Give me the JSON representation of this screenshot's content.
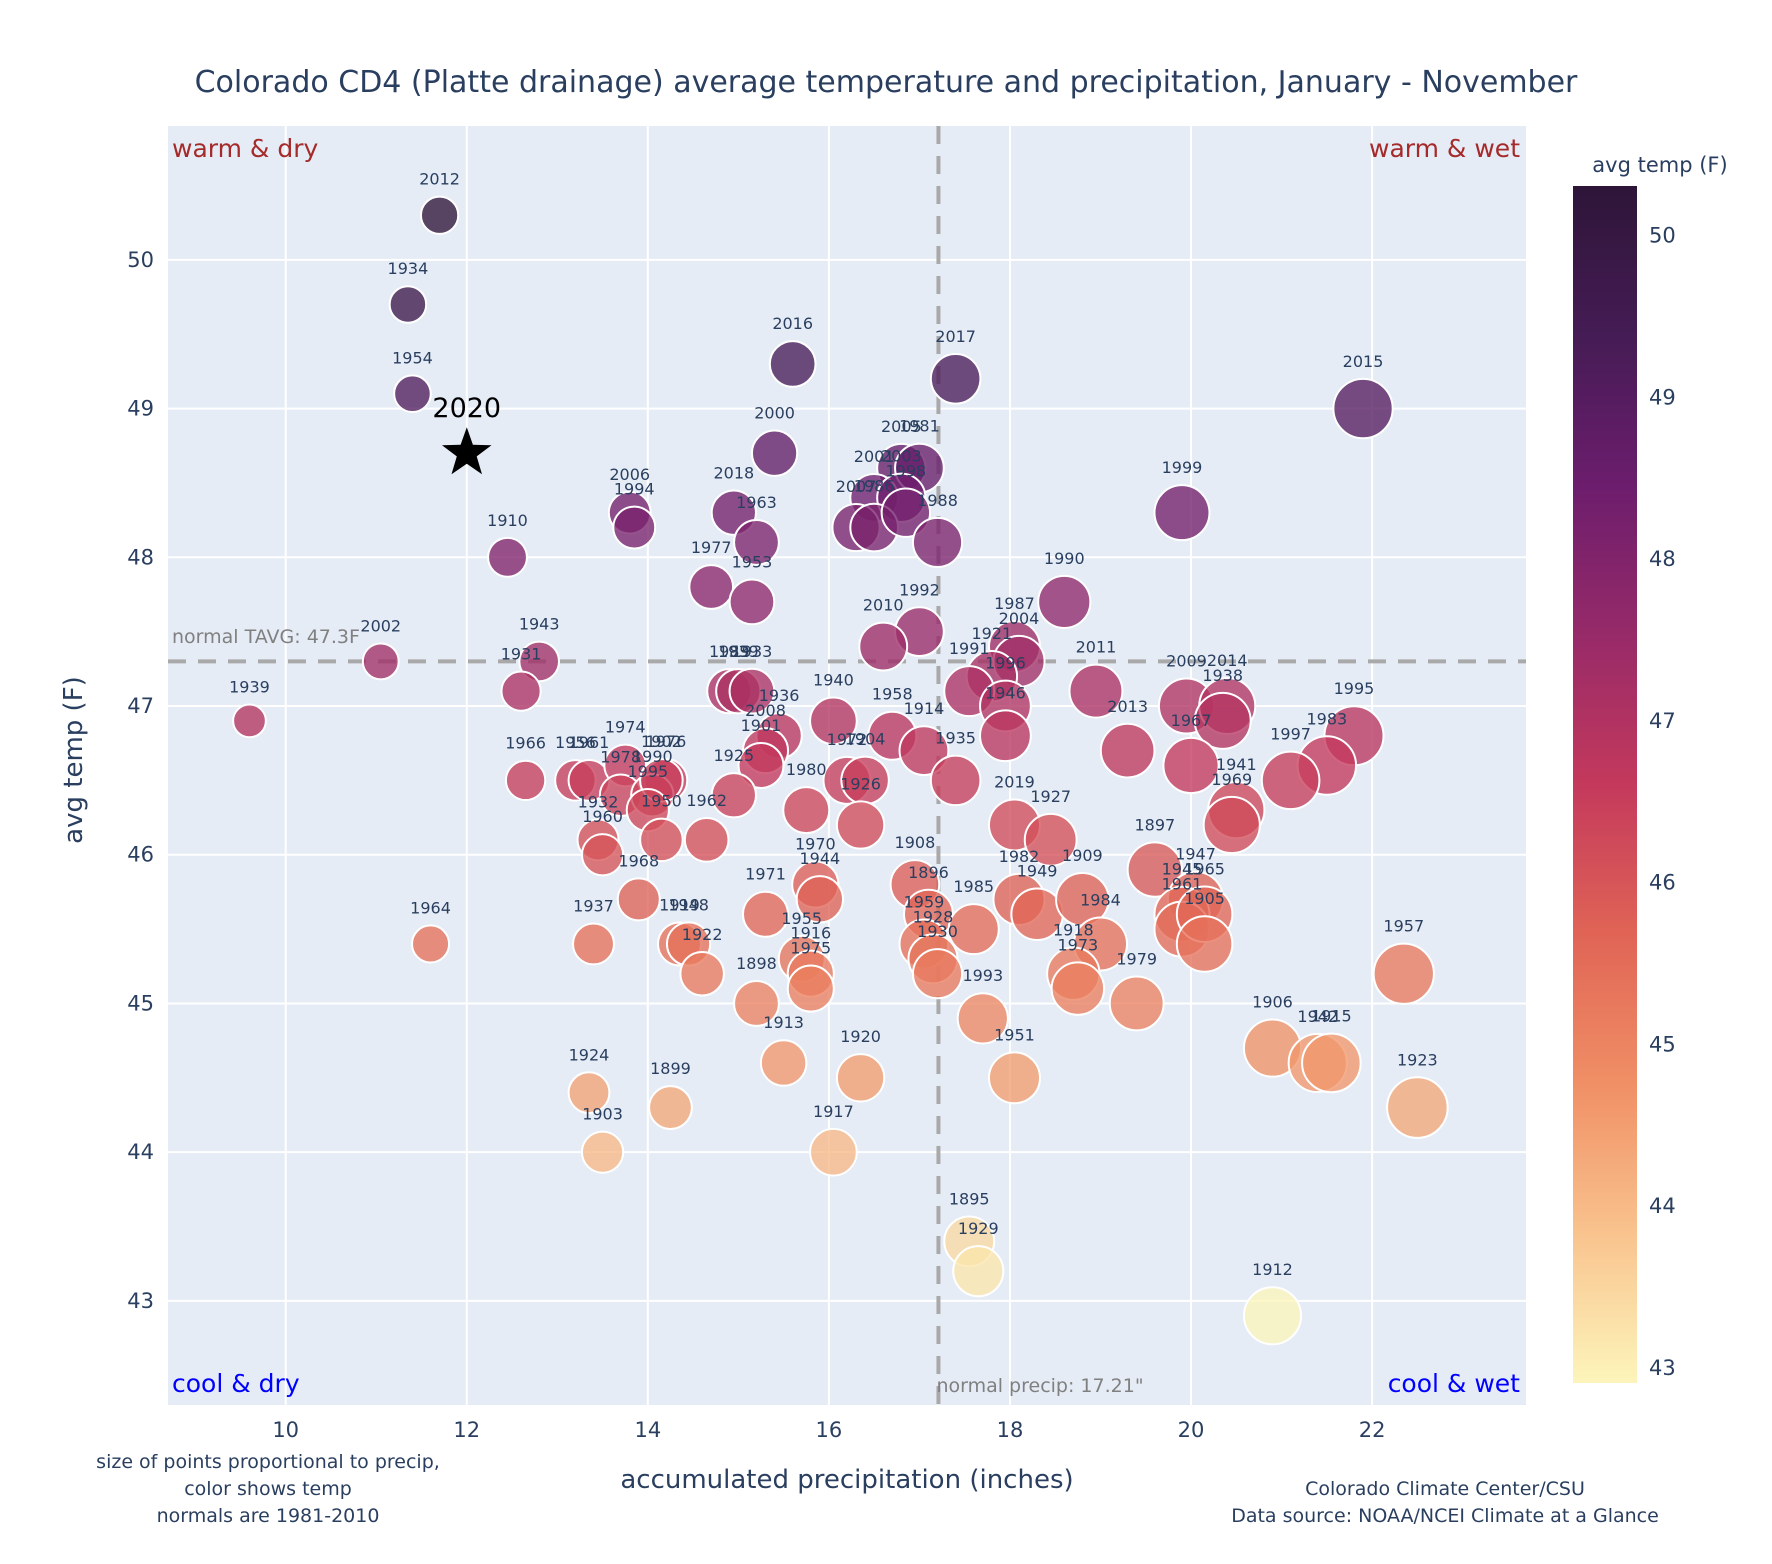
{
  "chart_data": {
    "type": "scatter",
    "title": "Colorado CD4 (Platte drainage) average temperature and precipitation, January - November",
    "xlabel": "accumulated precipitation (inches)",
    "ylabel": "avg temp (F)",
    "xlim": [
      8.7,
      23.7
    ],
    "ylim": [
      42.3,
      50.9
    ],
    "xticks": [
      10,
      12,
      14,
      16,
      18,
      20,
      22
    ],
    "yticks": [
      43,
      44,
      45,
      46,
      47,
      48,
      49,
      50
    ],
    "grid": true,
    "colorbar": {
      "title": "avg temp (F)",
      "range": [
        42.9,
        50.3
      ],
      "ticks": [
        43,
        44,
        45,
        46,
        47,
        48,
        49,
        50
      ],
      "colorscale": [
        "#fcf5bb",
        "#f9c38e",
        "#f08f65",
        "#e06456",
        "#c4395c",
        "#972a69",
        "#6c1d6d",
        "#451c55",
        "#2e1538"
      ]
    },
    "quadrant_labels": {
      "top_left": "warm & dry",
      "top_right": "warm & wet",
      "bottom_left": "cool & dry",
      "bottom_right": "cool & wet"
    },
    "normals": {
      "temp": 47.3,
      "temp_label": "normal TAVG: 47.3F",
      "precip": 17.21,
      "precip_label": "normal precip: 17.21\""
    },
    "highlight": {
      "year": "2020",
      "precip": 12.0,
      "temp": 48.7,
      "marker": "star"
    },
    "notes": {
      "left": [
        "size of points proportional to precip,",
        "color shows temp",
        "normals are 1981-2010"
      ],
      "right": [
        "Colorado Climate Center/CSU",
        "Data source: NOAA/NCEI Climate at a Glance"
      ]
    },
    "points": [
      {
        "year": "2012",
        "precip": 11.7,
        "temp": 50.3
      },
      {
        "year": "1934",
        "precip": 11.35,
        "temp": 49.7
      },
      {
        "year": "1954",
        "precip": 11.4,
        "temp": 49.1
      },
      {
        "year": "1910",
        "precip": 12.45,
        "temp": 48.0
      },
      {
        "year": "2002",
        "precip": 11.05,
        "temp": 47.3
      },
      {
        "year": "1939",
        "precip": 9.6,
        "temp": 46.9
      },
      {
        "year": "1943",
        "precip": 12.8,
        "temp": 47.3
      },
      {
        "year": "1931",
        "precip": 12.6,
        "temp": 47.1
      },
      {
        "year": "2006",
        "precip": 13.8,
        "temp": 48.3
      },
      {
        "year": "1994",
        "precip": 13.85,
        "temp": 48.2
      },
      {
        "year": "2016",
        "precip": 15.6,
        "temp": 49.3
      },
      {
        "year": "2000",
        "precip": 15.4,
        "temp": 48.7
      },
      {
        "year": "2018",
        "precip": 14.95,
        "temp": 48.3
      },
      {
        "year": "1963",
        "precip": 15.2,
        "temp": 48.1
      },
      {
        "year": "1977",
        "precip": 14.7,
        "temp": 47.8
      },
      {
        "year": "1953",
        "precip": 15.15,
        "temp": 47.7
      },
      {
        "year": "2017",
        "precip": 17.4,
        "temp": 49.2
      },
      {
        "year": "2005",
        "precip": 16.8,
        "temp": 48.6
      },
      {
        "year": "1981",
        "precip": 17.0,
        "temp": 48.6
      },
      {
        "year": "2001",
        "precip": 16.5,
        "temp": 48.4
      },
      {
        "year": "2003",
        "precip": 16.8,
        "temp": 48.4
      },
      {
        "year": "2007",
        "precip": 16.3,
        "temp": 48.2
      },
      {
        "year": "1986",
        "precip": 16.5,
        "temp": 48.2
      },
      {
        "year": "1998",
        "precip": 16.85,
        "temp": 48.3
      },
      {
        "year": "1988",
        "precip": 17.2,
        "temp": 48.1
      },
      {
        "year": "2015",
        "precip": 21.9,
        "temp": 49.0
      },
      {
        "year": "1999",
        "precip": 19.9,
        "temp": 48.3
      },
      {
        "year": "1990",
        "precip": 18.6,
        "temp": 47.7
      },
      {
        "year": "1992",
        "precip": 17.0,
        "temp": 47.5
      },
      {
        "year": "2010",
        "precip": 16.6,
        "temp": 47.4
      },
      {
        "year": "1987",
        "precip": 18.05,
        "temp": 47.4
      },
      {
        "year": "2004",
        "precip": 18.1,
        "temp": 47.3
      },
      {
        "year": "1921",
        "precip": 17.8,
        "temp": 47.2
      },
      {
        "year": "1991",
        "precip": 17.55,
        "temp": 47.1
      },
      {
        "year": "1996",
        "precip": 17.95,
        "temp": 47.0
      },
      {
        "year": "1946",
        "precip": 17.95,
        "temp": 46.8
      },
      {
        "year": "2011",
        "precip": 18.95,
        "temp": 47.1
      },
      {
        "year": "2013",
        "precip": 19.3,
        "temp": 46.7
      },
      {
        "year": "2009",
        "precip": 19.95,
        "temp": 47.0
      },
      {
        "year": "2014",
        "precip": 20.4,
        "temp": 47.0
      },
      {
        "year": "1938",
        "precip": 20.35,
        "temp": 46.9
      },
      {
        "year": "1967",
        "precip": 20.0,
        "temp": 46.6
      },
      {
        "year": "1995",
        "precip": 21.8,
        "temp": 46.8
      },
      {
        "year": "1983",
        "precip": 21.5,
        "temp": 46.6
      },
      {
        "year": "1997",
        "precip": 21.1,
        "temp": 46.5
      },
      {
        "year": "1941",
        "precip": 20.5,
        "temp": 46.3
      },
      {
        "year": "1969",
        "precip": 20.45,
        "temp": 46.2
      },
      {
        "year": "1989",
        "precip": 14.9,
        "temp": 47.1
      },
      {
        "year": "1939b",
        "precip": 15.0,
        "temp": 47.1
      },
      {
        "year": "1933",
        "precip": 15.15,
        "temp": 47.1
      },
      {
        "year": "1936",
        "precip": 15.45,
        "temp": 46.8
      },
      {
        "year": "2008",
        "precip": 15.3,
        "temp": 46.7
      },
      {
        "year": "1901",
        "precip": 15.25,
        "temp": 46.6
      },
      {
        "year": "1925",
        "precip": 14.95,
        "temp": 46.4
      },
      {
        "year": "1940",
        "precip": 16.05,
        "temp": 46.9
      },
      {
        "year": "1972",
        "precip": 16.2,
        "temp": 46.5
      },
      {
        "year": "1904",
        "precip": 16.4,
        "temp": 46.5
      },
      {
        "year": "1926",
        "precip": 16.35,
        "temp": 46.2
      },
      {
        "year": "1980",
        "precip": 15.75,
        "temp": 46.3
      },
      {
        "year": "1958",
        "precip": 16.7,
        "temp": 46.8
      },
      {
        "year": "1914",
        "precip": 17.05,
        "temp": 46.7
      },
      {
        "year": "1935",
        "precip": 17.4,
        "temp": 46.5
      },
      {
        "year": "1966",
        "precip": 12.65,
        "temp": 46.5
      },
      {
        "year": "1956",
        "precip": 13.2,
        "temp": 46.5
      },
      {
        "year": "1961",
        "precip": 13.35,
        "temp": 46.5
      },
      {
        "year": "1974",
        "precip": 13.75,
        "temp": 46.6
      },
      {
        "year": "1978",
        "precip": 13.7,
        "temp": 46.4
      },
      {
        "year": "1976",
        "precip": 14.2,
        "temp": 46.5
      },
      {
        "year": "1990b",
        "precip": 14.05,
        "temp": 46.4
      },
      {
        "year": "1902",
        "precip": 14.15,
        "temp": 46.5
      },
      {
        "year": "1932",
        "precip": 13.45,
        "temp": 46.1
      },
      {
        "year": "1960",
        "precip": 13.5,
        "temp": 46.0
      },
      {
        "year": "1995b",
        "precip": 14.0,
        "temp": 46.3
      },
      {
        "year": "1950",
        "precip": 14.15,
        "temp": 46.1
      },
      {
        "year": "1962",
        "precip": 14.65,
        "temp": 46.1
      },
      {
        "year": "1968",
        "precip": 13.9,
        "temp": 45.7
      },
      {
        "year": "1937",
        "precip": 13.4,
        "temp": 45.4
      },
      {
        "year": "1919",
        "precip": 14.35,
        "temp": 45.4
      },
      {
        "year": "1948",
        "precip": 14.45,
        "temp": 45.4
      },
      {
        "year": "1922",
        "precip": 14.6,
        "temp": 45.2
      },
      {
        "year": "1964",
        "precip": 11.6,
        "temp": 45.4
      },
      {
        "year": "1971",
        "precip": 15.3,
        "temp": 45.6
      },
      {
        "year": "1970",
        "precip": 15.85,
        "temp": 45.8
      },
      {
        "year": "1944",
        "precip": 15.9,
        "temp": 45.7
      },
      {
        "year": "1955",
        "precip": 15.7,
        "temp": 45.3
      },
      {
        "year": "1916",
        "precip": 15.8,
        "temp": 45.2
      },
      {
        "year": "1975",
        "precip": 15.8,
        "temp": 45.1
      },
      {
        "year": "1898",
        "precip": 15.2,
        "temp": 45.0
      },
      {
        "year": "1913",
        "precip": 15.5,
        "temp": 44.6
      },
      {
        "year": "1920",
        "precip": 16.35,
        "temp": 44.5
      },
      {
        "year": "1917",
        "precip": 16.05,
        "temp": 44.0
      },
      {
        "year": "1924",
        "precip": 13.35,
        "temp": 44.4
      },
      {
        "year": "1903",
        "precip": 13.5,
        "temp": 44.0
      },
      {
        "year": "1899",
        "precip": 14.25,
        "temp": 44.3
      },
      {
        "year": "1908",
        "precip": 16.95,
        "temp": 45.8
      },
      {
        "year": "1896",
        "precip": 17.1,
        "temp": 45.6
      },
      {
        "year": "1959",
        "precip": 17.05,
        "temp": 45.4
      },
      {
        "year": "1928",
        "precip": 17.15,
        "temp": 45.3
      },
      {
        "year": "1930",
        "precip": 17.2,
        "temp": 45.2
      },
      {
        "year": "1985",
        "precip": 17.6,
        "temp": 45.5
      },
      {
        "year": "1993",
        "precip": 17.7,
        "temp": 44.9
      },
      {
        "year": "1951",
        "precip": 18.05,
        "temp": 44.5
      },
      {
        "year": "2019",
        "precip": 18.05,
        "temp": 46.2
      },
      {
        "year": "1927",
        "precip": 18.45,
        "temp": 46.1
      },
      {
        "year": "1982",
        "precip": 18.1,
        "temp": 45.7
      },
      {
        "year": "1949",
        "precip": 18.3,
        "temp": 45.6
      },
      {
        "year": "1909",
        "precip": 18.8,
        "temp": 45.7
      },
      {
        "year": "1984",
        "precip": 19.0,
        "temp": 45.4
      },
      {
        "year": "1918",
        "precip": 18.7,
        "temp": 45.2
      },
      {
        "year": "1973",
        "precip": 18.75,
        "temp": 45.1
      },
      {
        "year": "1979",
        "precip": 19.4,
        "temp": 45.0
      },
      {
        "year": "1897",
        "precip": 19.6,
        "temp": 45.9
      },
      {
        "year": "1947",
        "precip": 20.05,
        "temp": 45.7
      },
      {
        "year": "1945",
        "precip": 19.9,
        "temp": 45.6
      },
      {
        "year": "1961b",
        "precip": 19.9,
        "temp": 45.5
      },
      {
        "year": "1965",
        "precip": 20.15,
        "temp": 45.6
      },
      {
        "year": "1905",
        "precip": 20.15,
        "temp": 45.4
      },
      {
        "year": "1906",
        "precip": 20.9,
        "temp": 44.7
      },
      {
        "year": "1942",
        "precip": 21.4,
        "temp": 44.6
      },
      {
        "year": "1915",
        "precip": 21.55,
        "temp": 44.6
      },
      {
        "year": "1957",
        "precip": 22.35,
        "temp": 45.2
      },
      {
        "year": "1923",
        "precip": 22.5,
        "temp": 44.3
      },
      {
        "year": "1895",
        "precip": 17.55,
        "temp": 43.4
      },
      {
        "year": "1929",
        "precip": 17.65,
        "temp": 43.2
      },
      {
        "year": "1912",
        "precip": 20.9,
        "temp": 42.9
      }
    ]
  }
}
